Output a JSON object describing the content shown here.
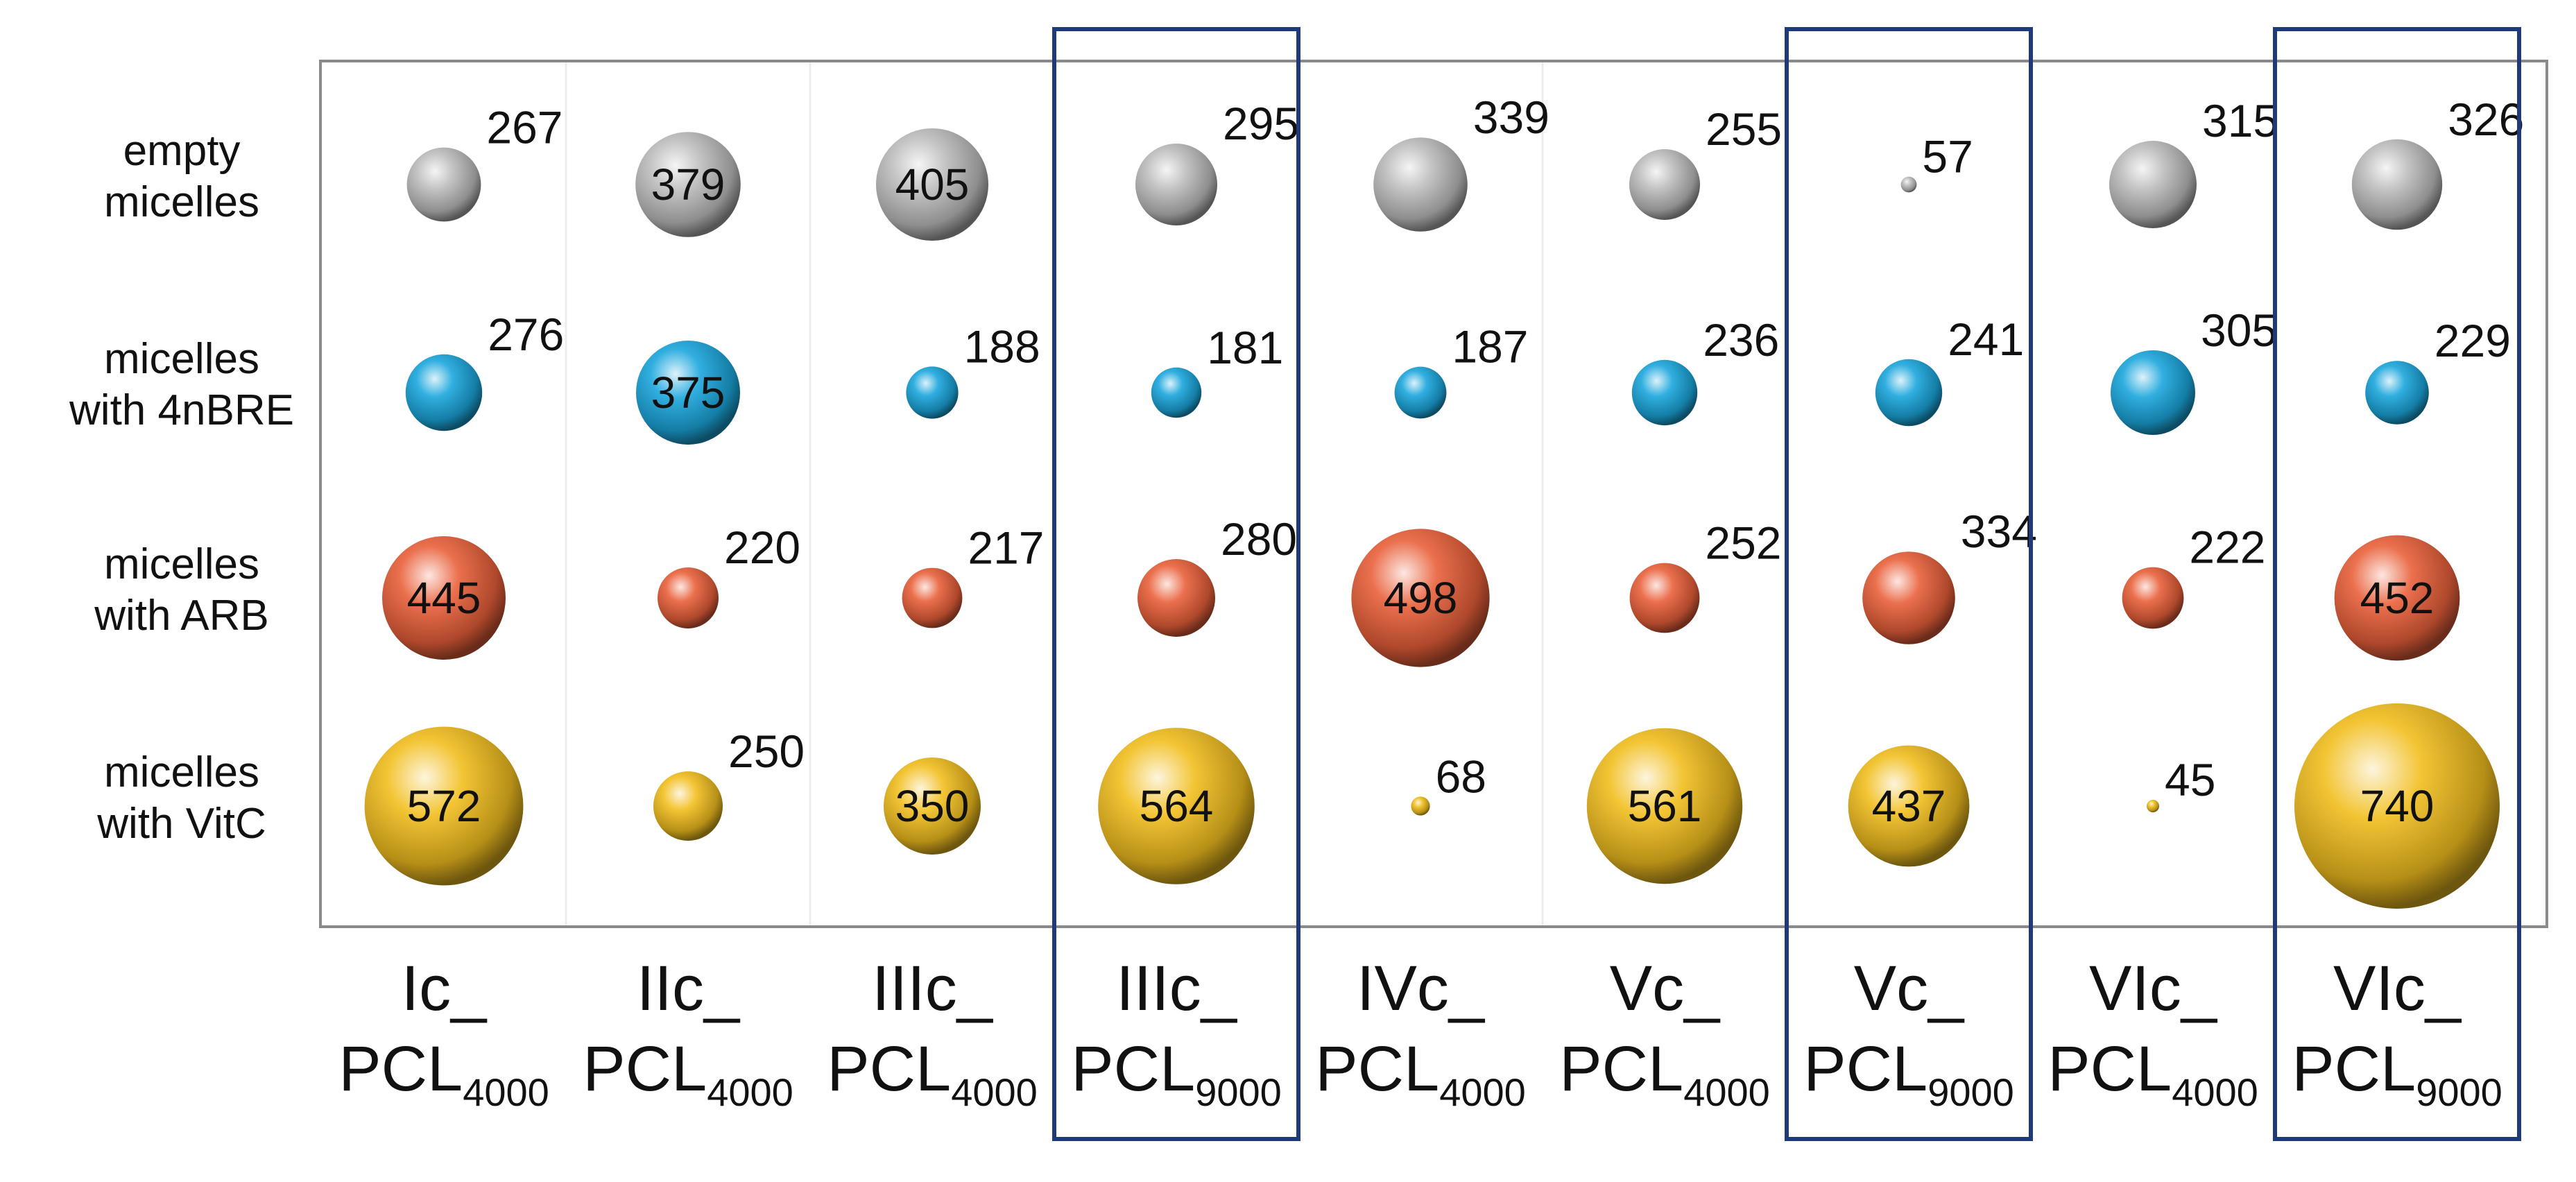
{
  "chart_data": {
    "type": "bubble",
    "rows": [
      {
        "label_lines": [
          "empty",
          "micelles"
        ],
        "color": "#bdbdbd"
      },
      {
        "label_lines": [
          "micelles",
          "with 4nBRE"
        ],
        "color": "#1aa6dc"
      },
      {
        "label_lines": [
          "micelles",
          "with ARB"
        ],
        "color": "#e9603a"
      },
      {
        "label_lines": [
          "micelles",
          "with VitC"
        ],
        "color": "#f2bf1f"
      }
    ],
    "columns": [
      {
        "main": "Ic_",
        "base": "PCL",
        "sub": "4000",
        "highlighted": false
      },
      {
        "main": "IIc_",
        "base": "PCL",
        "sub": "4000",
        "highlighted": false
      },
      {
        "main": "IIIc_",
        "base": "PCL",
        "sub": "4000",
        "highlighted": false
      },
      {
        "main": "IIIc_",
        "base": "PCL",
        "sub": "9000",
        "highlighted": true
      },
      {
        "main": "IVc_",
        "base": "PCL",
        "sub": "4000",
        "highlighted": false
      },
      {
        "main": "Vc_",
        "base": "PCL",
        "sub": "4000",
        "highlighted": false
      },
      {
        "main": "Vc_",
        "base": "PCL",
        "sub": "9000",
        "highlighted": true
      },
      {
        "main": "VIc_",
        "base": "PCL",
        "sub": "4000",
        "highlighted": false
      },
      {
        "main": "VIc_",
        "base": "PCL",
        "sub": "9000",
        "highlighted": true
      }
    ],
    "values": [
      [
        267,
        379,
        405,
        295,
        339,
        255,
        57,
        315,
        326
      ],
      [
        276,
        375,
        188,
        181,
        187,
        236,
        241,
        305,
        229
      ],
      [
        445,
        220,
        217,
        280,
        498,
        252,
        334,
        222,
        452
      ],
      [
        572,
        250,
        350,
        564,
        68,
        561,
        437,
        45,
        740
      ]
    ],
    "size_encoding": "bubble diameter proportional to value",
    "highlight_color": "#1f3a7a"
  }
}
